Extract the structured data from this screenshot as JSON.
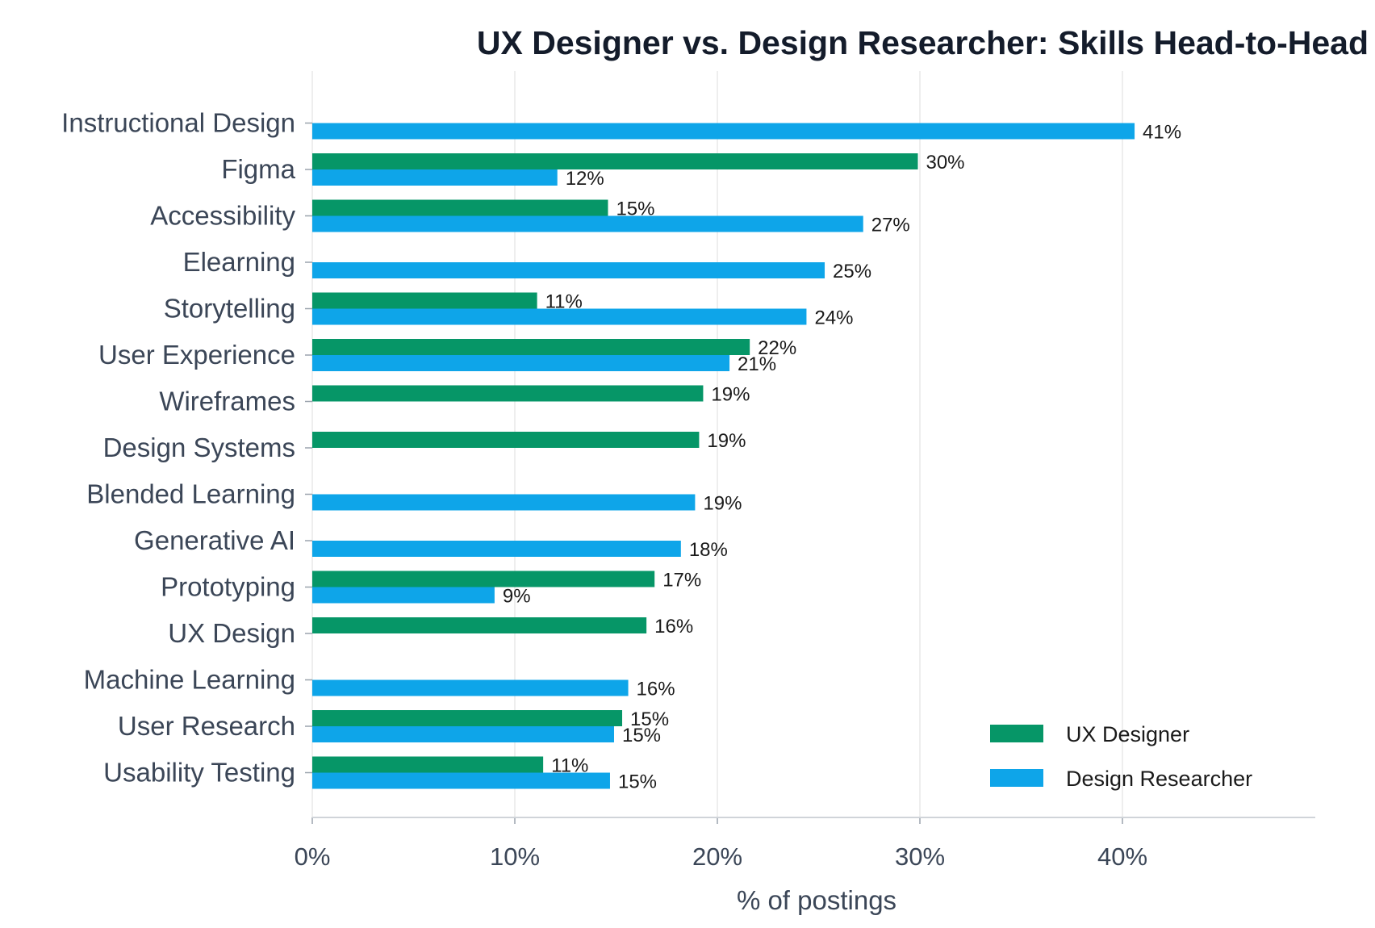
{
  "chart_data": {
    "type": "bar",
    "orientation": "horizontal",
    "title": "UX Designer vs. Design Researcher: Skills Head-to-Head",
    "xlabel": "% of postings",
    "ylabel": "",
    "xlim": [
      0,
      49
    ],
    "xticks": [
      0,
      10,
      20,
      30,
      40
    ],
    "xtick_labels": [
      "0%",
      "10%",
      "20%",
      "30%",
      "40%"
    ],
    "grid": "vertical",
    "legend_position": "bottom-right",
    "categories": [
      "Instructional Design",
      "Figma",
      "Accessibility",
      "Elearning",
      "Storytelling",
      "User Experience",
      "Wireframes",
      "Design Systems",
      "Blended Learning",
      "Generative AI",
      "Prototyping",
      "UX Design",
      "Machine Learning",
      "User Research",
      "Usability Testing"
    ],
    "series": [
      {
        "name": "UX Designer",
        "color": "#069667",
        "values": [
          null,
          29.9,
          14.6,
          null,
          11.1,
          21.6,
          19.3,
          19.1,
          null,
          null,
          16.9,
          16.5,
          null,
          15.3,
          11.4
        ],
        "labels": [
          "",
          "30%",
          "15%",
          "",
          "11%",
          "22%",
          "19%",
          "19%",
          "",
          "",
          "17%",
          "16%",
          "",
          "15%",
          "11%"
        ]
      },
      {
        "name": "Design Researcher",
        "color": "#0ea5e9",
        "values": [
          40.6,
          12.1,
          27.2,
          25.3,
          24.4,
          20.6,
          null,
          null,
          18.9,
          18.2,
          9.0,
          null,
          15.6,
          14.9,
          14.7
        ],
        "labels": [
          "41%",
          "12%",
          "27%",
          "25%",
          "24%",
          "21%",
          "",
          "",
          "19%",
          "18%",
          "9%",
          "",
          "16%",
          "15%",
          "15%"
        ]
      }
    ]
  }
}
